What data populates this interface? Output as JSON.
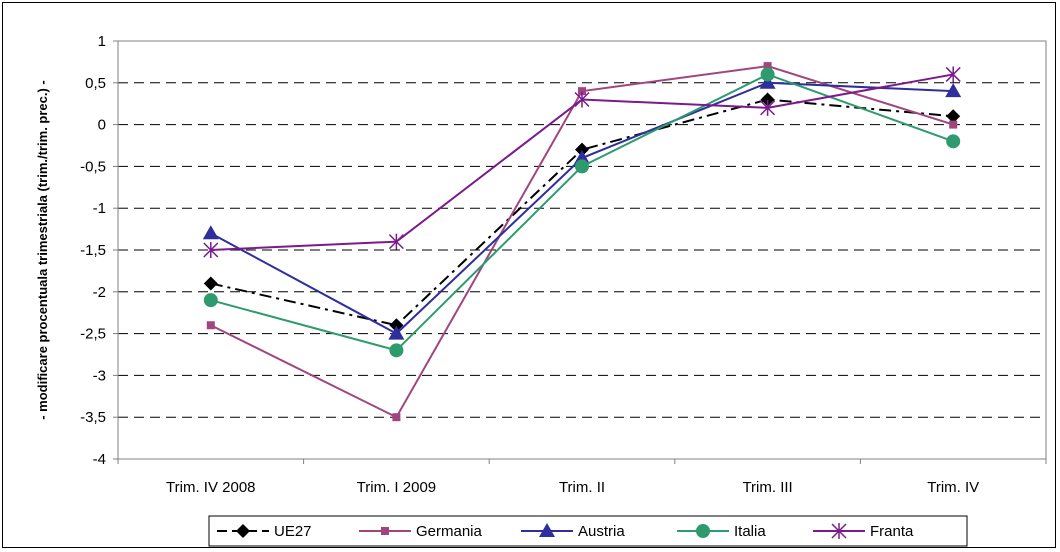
{
  "chart_data": {
    "type": "line",
    "categories": [
      "Trim. IV 2008",
      "Trim. I 2009",
      "Trim. II",
      "Trim. III",
      "Trim. IV"
    ],
    "ylabel": "- modificare procentuala trimestriala (trim./trim. prec.) -",
    "ylim": [
      -4,
      1
    ],
    "yticks": [
      1,
      0.5,
      0,
      -0.5,
      -1,
      -1.5,
      -2,
      -2.5,
      -3,
      -3.5,
      -4
    ],
    "ytick_labels": [
      "1",
      "0,5",
      "0",
      "-0,5",
      "-1",
      "-1,5",
      "-2",
      "-2,5",
      "-3",
      "-3,5",
      "-4"
    ],
    "grid": "horizontal dashed",
    "legend_position": "bottom",
    "series": [
      {
        "name": "UE27",
        "values": [
          -1.9,
          -2.4,
          -0.3,
          0.3,
          0.1
        ],
        "color": "#000000",
        "marker": "diamond",
        "dash": "12,5,3,5"
      },
      {
        "name": "Germania",
        "values": [
          -2.4,
          -3.5,
          0.4,
          0.7,
          0.0
        ],
        "color": "#a0467e",
        "marker": "square",
        "dash": ""
      },
      {
        "name": "Austria",
        "values": [
          -1.3,
          -2.5,
          -0.4,
          0.5,
          0.4
        ],
        "color": "#2e2e9c",
        "marker": "triangle",
        "dash": ""
      },
      {
        "name": "Italia",
        "values": [
          -2.1,
          -2.7,
          -0.5,
          0.6,
          -0.2
        ],
        "color": "#2e9a6e",
        "marker": "circle",
        "dash": ""
      },
      {
        "name": "Franta",
        "values": [
          -1.5,
          -1.4,
          0.3,
          0.2,
          0.6
        ],
        "color": "#7b1a8c",
        "marker": "star",
        "dash": ""
      }
    ]
  }
}
